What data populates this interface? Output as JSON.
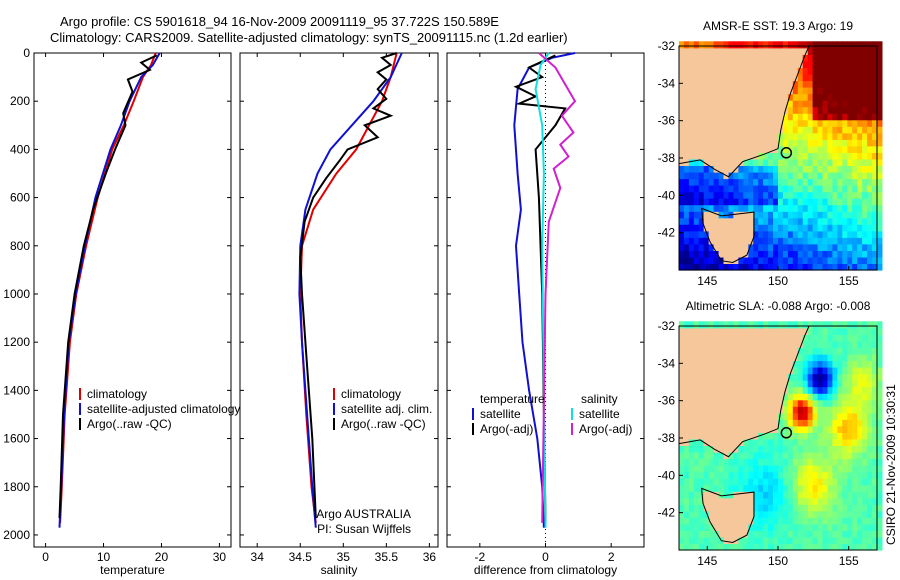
{
  "header": {
    "line1": "Argo profile: CS 5901618_94 16-Nov-2009 20091119_95 37.722S 150.589E",
    "line2": "Climatology: CARS2009. Satellite-adjusted climatology: synTS_20091115.nc (1.2d earlier)"
  },
  "side_text": "CSIRO 21-Nov-2009 10:30:31",
  "colors": {
    "climatology": "#e00000",
    "satellite": "#1010d0",
    "argo": "#000000",
    "sat_salinity": "#10e0e0",
    "argo_salinity": "#d020d0",
    "land": "#f7c79c"
  },
  "chart_data": [
    {
      "type": "line",
      "id": "temperature",
      "xlabel": "temperature",
      "ylabel": "",
      "xlim": [
        -2,
        32
      ],
      "ylim": [
        2050,
        0
      ],
      "xticks": [
        0,
        10,
        20,
        30
      ],
      "yticks": [
        0,
        200,
        400,
        600,
        800,
        1000,
        1200,
        1400,
        1600,
        1800,
        2000
      ],
      "legend": [
        "climatology",
        "satellite-adjusted climatology",
        "Argo(..raw -QC)"
      ],
      "series": [
        {
          "name": "climatology",
          "color": "#e00000",
          "x": [
            19.0,
            18.2,
            16.8,
            15.2,
            13.5,
            11.5,
            9.0,
            7.0,
            5.3,
            4.2,
            3.3,
            2.8,
            2.5
          ],
          "y": [
            0,
            50,
            100,
            200,
            300,
            400,
            600,
            800,
            1000,
            1200,
            1500,
            1800,
            1950
          ]
        },
        {
          "name": "satellite-adjusted climatology",
          "color": "#1010d0",
          "x": [
            19.7,
            18.5,
            16.5,
            14.5,
            13.0,
            11.2,
            8.6,
            6.8,
            5.2,
            4.0,
            3.2,
            2.7,
            2.4
          ],
          "y": [
            0,
            50,
            100,
            200,
            300,
            400,
            600,
            800,
            1000,
            1200,
            1500,
            1800,
            1970
          ]
        },
        {
          "name": "Argo(..raw -QC)",
          "color": "#000000",
          "x": [
            19.2,
            16.5,
            18.0,
            14.2,
            15.0,
            13.4,
            13.8,
            12.0,
            10.4,
            8.2,
            6.6,
            5.0,
            3.9,
            3.0,
            2.6,
            2.4
          ],
          "y": [
            10,
            40,
            70,
            110,
            160,
            250,
            300,
            400,
            500,
            650,
            800,
            1000,
            1200,
            1500,
            1800,
            1930
          ]
        }
      ]
    },
    {
      "type": "line",
      "id": "salinity",
      "xlabel": "salinity",
      "ylabel": "",
      "xlim": [
        33.8,
        36.1
      ],
      "ylim": [
        2050,
        0
      ],
      "xticks": [
        34,
        34.5,
        35,
        35.5,
        36
      ],
      "yticks": [
        0,
        200,
        400,
        600,
        800,
        1000,
        1200,
        1400,
        1600,
        1800,
        2000
      ],
      "legend": [
        "climatology",
        "satellite adj. clim.",
        "Argo(..raw -QC)"
      ],
      "annotation": [
        "Argo AUSTRALIA",
        "PI: Susan Wijffels"
      ],
      "series": [
        {
          "name": "climatology",
          "color": "#e00000",
          "x": [
            35.62,
            35.55,
            35.45,
            35.3,
            35.15,
            34.92,
            34.65,
            34.52,
            34.5,
            34.52,
            34.57,
            34.63,
            34.68
          ],
          "y": [
            0,
            100,
            200,
            300,
            400,
            500,
            650,
            800,
            1000,
            1200,
            1500,
            1800,
            1950
          ]
        },
        {
          "name": "satellite adj. clim.",
          "color": "#1010d0",
          "x": [
            35.68,
            35.55,
            35.35,
            35.1,
            34.85,
            34.7,
            34.56,
            34.5,
            34.49,
            34.52,
            34.58,
            34.64,
            34.68
          ],
          "y": [
            0,
            100,
            200,
            300,
            400,
            500,
            650,
            800,
            1000,
            1200,
            1500,
            1800,
            1970
          ]
        },
        {
          "name": "Argo(..raw -QC)",
          "color": "#000000",
          "x": [
            35.62,
            35.45,
            35.55,
            35.4,
            35.5,
            35.4,
            35.5,
            35.35,
            35.55,
            35.25,
            35.4,
            35.05,
            34.95,
            34.8,
            34.65,
            34.55,
            34.5,
            34.52,
            34.58,
            34.64,
            34.68
          ],
          "y": [
            0,
            20,
            50,
            80,
            110,
            150,
            190,
            230,
            260,
            300,
            350,
            400,
            450,
            520,
            600,
            700,
            850,
            1000,
            1300,
            1600,
            1930
          ]
        }
      ]
    },
    {
      "type": "line",
      "id": "difference",
      "xlabel": "difference from climatology",
      "ylabel": "",
      "xlim": [
        -3,
        3
      ],
      "ylim": [
        2050,
        0
      ],
      "xticks": [
        -2,
        0,
        2
      ],
      "yticks": [
        0,
        200,
        400,
        600,
        800,
        1000,
        1200,
        1400,
        1600,
        1800,
        2000
      ],
      "legend_titles": [
        "temperature",
        "salinity"
      ],
      "legend": [
        "satellite",
        "Argo(-adj)",
        "satellite",
        "Argo(-adj)"
      ],
      "series": [
        {
          "name": "satellite",
          "group": "temperature",
          "color": "#1010d0",
          "x": [
            0.9,
            0.2,
            -0.5,
            -0.85,
            -0.95,
            -0.85,
            -0.75,
            -0.9,
            -0.8,
            -0.7,
            -0.5,
            -0.25,
            -0.1,
            -0.05
          ],
          "y": [
            0,
            20,
            60,
            150,
            300,
            500,
            650,
            800,
            1000,
            1200,
            1400,
            1600,
            1800,
            1970
          ]
        },
        {
          "name": "Argo(-adj)",
          "group": "temperature",
          "color": "#000000",
          "x": [
            0.3,
            -0.5,
            -0.1,
            -0.9,
            -0.3,
            -0.8,
            0.6,
            0.3,
            -0.3,
            -0.2,
            -0.1,
            -0.05,
            0.0
          ],
          "y": [
            10,
            60,
            100,
            140,
            180,
            210,
            230,
            300,
            400,
            600,
            1000,
            1500,
            1950
          ]
        },
        {
          "name": "satellite",
          "group": "salinity",
          "color": "#10e0e0",
          "x": [
            0.1,
            -0.15,
            -0.3,
            -0.1,
            -0.05,
            -0.1,
            -0.05,
            0.0
          ],
          "y": [
            0,
            50,
            150,
            300,
            500,
            800,
            1400,
            1970
          ]
        },
        {
          "name": "Argo(-adj)",
          "group": "salinity",
          "color": "#d020d0",
          "x": [
            -0.2,
            0.3,
            0.9,
            0.5,
            0.85,
            0.45,
            0.7,
            0.25,
            0.45,
            0.1,
            0.0,
            -0.1
          ],
          "y": [
            0,
            60,
            200,
            260,
            330,
            380,
            430,
            480,
            560,
            700,
            1000,
            1950
          ]
        }
      ]
    },
    {
      "type": "heatmap",
      "id": "sst_map",
      "title": "AMSR-E SST: 19.3 Argo: 19",
      "xlim": [
        143,
        157
      ],
      "ylim": [
        -44,
        -32
      ],
      "xticks": [
        145,
        150,
        155
      ],
      "yticks": [
        -32,
        -34,
        -36,
        -38,
        -40,
        -42
      ],
      "float_position": [
        150.589,
        -37.722
      ]
    },
    {
      "type": "heatmap",
      "id": "sla_map",
      "title": "Altimetric SLA: -0.088 Argo: -0.008",
      "xlim": [
        143,
        157
      ],
      "ylim": [
        -44,
        -32
      ],
      "xticks": [
        145,
        150,
        155
      ],
      "yticks": [
        -32,
        -34,
        -36,
        -38,
        -40,
        -42
      ],
      "float_position": [
        150.589,
        -37.722
      ]
    }
  ]
}
